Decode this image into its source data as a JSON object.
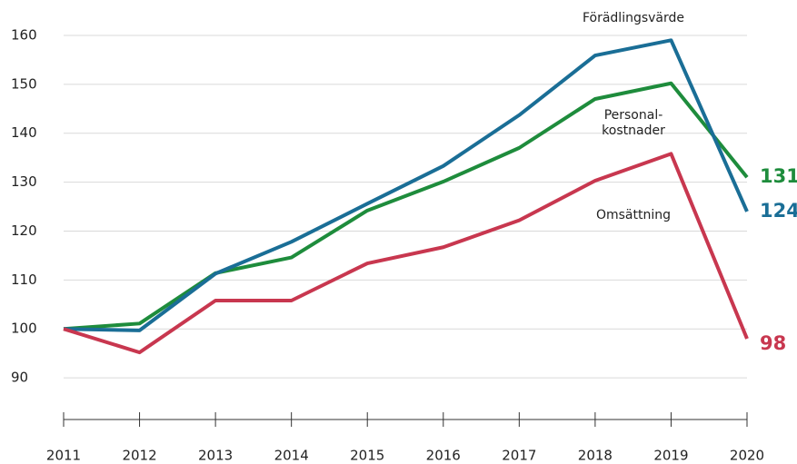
{
  "chart_data": {
    "type": "line",
    "x": [
      2011,
      2012,
      2013,
      2014,
      2015,
      2016,
      2017,
      2018,
      2019,
      2020
    ],
    "series": [
      {
        "name": "Personal-kostnader",
        "color": "#1e8c3c",
        "values": [
          100,
          101.1,
          111.4,
          114.6,
          124.2,
          130.1,
          137,
          147,
          150.2,
          131
        ]
      },
      {
        "name": "Förädlingsvärde",
        "color": "#1a6e96",
        "values": [
          100,
          99.7,
          111.3,
          117.8,
          125.6,
          133.3,
          143.7,
          155.9,
          159,
          124
        ]
      },
      {
        "name": "Omsättning",
        "color": "#c8374f",
        "values": [
          100,
          95.2,
          105.8,
          105.8,
          113.4,
          116.7,
          122.2,
          130.3,
          135.8,
          98
        ]
      }
    ],
    "xlim": [
      2011,
      2020
    ],
    "ylim": [
      80,
      165
    ],
    "yticks": [
      90,
      100,
      110,
      120,
      130,
      140,
      150,
      160
    ],
    "grid": true
  }
}
